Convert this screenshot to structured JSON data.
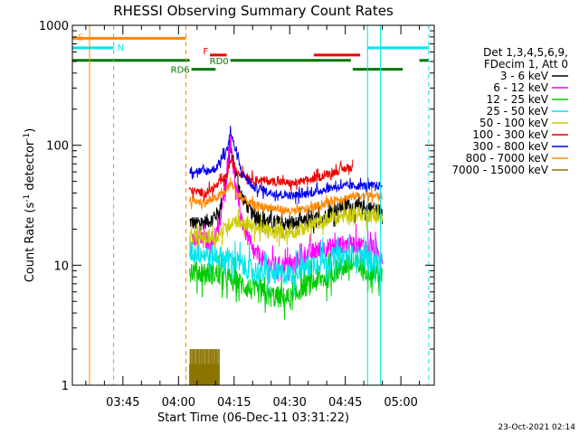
{
  "chart_data": {
    "type": "line",
    "title": "RHESSI Observing Summary Count Rates",
    "xlabel": "Start Time (06-Dec-11 03:31:22)",
    "ylabel": "Count Rate (s",
    "ylabel_sup": "-1",
    "ylabel_rest": " detector",
    "ylabel_end": ")",
    "yscale": "log",
    "ylim": [
      1,
      1000
    ],
    "xlim": [
      "03:31:22",
      "05:09:00"
    ],
    "x_ticks": [
      "03:45",
      "04:00",
      "04:15",
      "04:30",
      "04:45",
      "05:00"
    ],
    "y_ticks": [
      "1",
      "10",
      "100",
      "1000"
    ],
    "timestamp": "23-Oct-2021 02:14",
    "legend": {
      "position": "right",
      "header": [
        "Det 1,3,4,5,6,9,",
        "FDecim 1, Att 0"
      ],
      "entries": [
        {
          "label": "3 - 6 keV",
          "color": "#000000"
        },
        {
          "label": "6 - 12 keV",
          "color": "#ff00ff"
        },
        {
          "label": "12 - 25 keV",
          "color": "#00cc00"
        },
        {
          "label": "25 - 50 keV",
          "color": "#00e5ee"
        },
        {
          "label": "50 - 100 keV",
          "color": "#cccc00"
        },
        {
          "label": "100 - 300 keV",
          "color": "#ee0000"
        },
        {
          "label": "300 - 800 keV",
          "color": "#0000ee"
        },
        {
          "label": "800 - 7000 keV",
          "color": "#ff8800"
        },
        {
          "label": "7000 - 15000 keV",
          "color": "#8b7500"
        }
      ]
    },
    "flags": [
      {
        "label": "S",
        "color": "#ff8800",
        "level": 780,
        "segments": [
          [
            "03:31:22",
            "04:02:00"
          ]
        ]
      },
      {
        "label": "N",
        "color": "#00e5ee",
        "level": 650,
        "segments": [
          [
            "03:31:22",
            "03:42:30"
          ],
          [
            "04:51:00",
            "05:07:30"
          ]
        ]
      },
      {
        "label": "F",
        "color": "#ee0000",
        "level": 565,
        "segments": [
          [
            "04:08:30",
            "04:13:00"
          ],
          [
            "04:36:30",
            "04:49:00"
          ]
        ]
      },
      {
        "label": "RD0",
        "color": "#007700",
        "level": 510,
        "segments": [
          [
            "03:31:22",
            "04:03:00"
          ],
          [
            "04:14:00",
            "04:46:30"
          ],
          [
            "05:05:00",
            "05:07:30"
          ]
        ]
      },
      {
        "label": "RD6",
        "color": "#007700",
        "level": 430,
        "segments": [
          [
            "04:03:30",
            "04:10:00"
          ],
          [
            "04:47:00",
            "05:00:30"
          ]
        ]
      }
    ],
    "vlines": [
      {
        "time": "03:36:00",
        "color": "#ff8800",
        "style": "solid"
      },
      {
        "time": "03:42:30",
        "color": "#00e5ee",
        "style": "dashed"
      },
      {
        "time": "04:02:00",
        "color": "#ff8800",
        "style": "dashed"
      },
      {
        "time": "04:51:00",
        "color": "#00e5ee",
        "style": "solid"
      },
      {
        "time": "04:54:30",
        "color": "#00e5ee",
        "style": "solid"
      },
      {
        "time": "05:07:30",
        "color": "#00e5ee",
        "style": "dashed"
      }
    ],
    "series": [
      {
        "name": "3 - 6 keV",
        "color": "#000000",
        "noise": 0.14,
        "points": [
          [
            "04:03:00",
            23
          ],
          [
            "04:05:00",
            22
          ],
          [
            "04:09:00",
            24
          ],
          [
            "04:11:00",
            28
          ],
          [
            "04:13:00",
            50
          ],
          [
            "04:14:00",
            95
          ],
          [
            "04:15:00",
            70
          ],
          [
            "04:17:00",
            38
          ],
          [
            "04:20:00",
            26
          ],
          [
            "04:25:00",
            23
          ],
          [
            "04:30:00",
            22
          ],
          [
            "04:35:00",
            23
          ],
          [
            "04:40:00",
            26
          ],
          [
            "04:45:00",
            32
          ],
          [
            "04:48:00",
            30
          ],
          [
            "04:52:00",
            30
          ],
          [
            "04:55:00",
            28
          ]
        ]
      },
      {
        "name": "6 - 12 keV",
        "color": "#ff00ff",
        "noise": 0.18,
        "points": [
          [
            "04:03:00",
            16
          ],
          [
            "04:09:00",
            16
          ],
          [
            "04:11:00",
            20
          ],
          [
            "04:13:00",
            60
          ],
          [
            "04:14:00",
            120
          ],
          [
            "04:15:00",
            55
          ],
          [
            "04:17:00",
            24
          ],
          [
            "04:20:00",
            13
          ],
          [
            "04:25:00",
            10
          ],
          [
            "04:31:00",
            10
          ],
          [
            "04:33:00",
            12
          ],
          [
            "04:40:00",
            14
          ],
          [
            "04:45:00",
            15
          ],
          [
            "04:48:00",
            15
          ],
          [
            "04:52:00",
            14
          ],
          [
            "04:55:00",
            12
          ]
        ]
      },
      {
        "name": "12 - 25 keV",
        "color": "#00cc00",
        "noise": 0.22,
        "points": [
          [
            "04:03:00",
            9
          ],
          [
            "04:10:00",
            8.5
          ],
          [
            "04:15:00",
            7.5
          ],
          [
            "04:20:00",
            6.2
          ],
          [
            "04:25:00",
            5.5
          ],
          [
            "04:31:00",
            5.2
          ],
          [
            "04:33:00",
            6.5
          ],
          [
            "04:40:00",
            8
          ],
          [
            "04:45:00",
            10
          ],
          [
            "04:48:00",
            10
          ],
          [
            "04:52:00",
            9
          ],
          [
            "04:55:00",
            8
          ]
        ]
      },
      {
        "name": "25 - 50 keV",
        "color": "#00e5ee",
        "noise": 0.22,
        "points": [
          [
            "04:03:00",
            13
          ],
          [
            "04:10:00",
            12
          ],
          [
            "04:15:00",
            11
          ],
          [
            "04:20:00",
            9
          ],
          [
            "04:25:00",
            8.5
          ],
          [
            "04:31:00",
            8.5
          ],
          [
            "04:33:00",
            9.5
          ],
          [
            "04:40:00",
            11
          ],
          [
            "04:45:00",
            12
          ],
          [
            "04:48:00",
            12
          ],
          [
            "04:52:00",
            11
          ],
          [
            "04:55:00",
            10
          ]
        ]
      },
      {
        "name": "50 - 100 keV",
        "color": "#cccc00",
        "noise": 0.14,
        "points": [
          [
            "04:03:00",
            17
          ],
          [
            "04:10:00",
            17
          ],
          [
            "04:15:00",
            24
          ],
          [
            "04:20:00",
            21
          ],
          [
            "04:25:00",
            19
          ],
          [
            "04:31:00",
            19
          ],
          [
            "04:35:00",
            21
          ],
          [
            "04:40:00",
            24
          ],
          [
            "04:45:00",
            26
          ],
          [
            "04:48:00",
            27
          ],
          [
            "04:52:00",
            26
          ],
          [
            "04:55:00",
            25
          ]
        ]
      },
      {
        "name": "100 - 300 keV",
        "color": "#ee0000",
        "noise": 0.08,
        "points": [
          [
            "04:03:00",
            42
          ],
          [
            "04:07:00",
            40
          ],
          [
            "04:10:00",
            45
          ],
          [
            "04:13:00",
            55
          ],
          [
            "04:14:00",
            75
          ],
          [
            "04:16:00",
            60
          ],
          [
            "04:20:00",
            52
          ],
          [
            "04:25:00",
            50
          ],
          [
            "04:31:00",
            48
          ],
          [
            "04:36:00",
            52
          ],
          [
            "04:42:00",
            60
          ],
          [
            "04:46:00",
            65
          ],
          [
            "04:47:00",
            65
          ]
        ]
      },
      {
        "name": "300 - 800 keV",
        "color": "#0000ee",
        "noise": 0.08,
        "points": [
          [
            "04:03:00",
            62
          ],
          [
            "04:07:00",
            60
          ],
          [
            "04:10:00",
            64
          ],
          [
            "04:13:00",
            90
          ],
          [
            "04:14:00",
            130
          ],
          [
            "04:15:00",
            100
          ],
          [
            "04:17:00",
            60
          ],
          [
            "04:20:00",
            45
          ],
          [
            "04:25:00",
            40
          ],
          [
            "04:31:00",
            38
          ],
          [
            "04:36:00",
            40
          ],
          [
            "04:42:00",
            45
          ],
          [
            "04:48:00",
            46
          ],
          [
            "04:52:00",
            46
          ],
          [
            "04:55:00",
            46
          ]
        ]
      },
      {
        "name": "800 - 7000 keV",
        "color": "#ff8800",
        "noise": 0.08,
        "points": [
          [
            "04:03:00",
            35
          ],
          [
            "04:07:00",
            33
          ],
          [
            "04:10:00",
            36
          ],
          [
            "04:13:00",
            42
          ],
          [
            "04:14:00",
            50
          ],
          [
            "04:16:00",
            38
          ],
          [
            "04:20:00",
            32
          ],
          [
            "04:25:00",
            30
          ],
          [
            "04:31:00",
            28
          ],
          [
            "04:36:00",
            30
          ],
          [
            "04:42:00",
            35
          ],
          [
            "04:48:00",
            38
          ],
          [
            "04:52:00",
            38
          ],
          [
            "04:55:00",
            38
          ]
        ]
      },
      {
        "name": "7000 - 15000 keV",
        "color": "#8b7500",
        "noise": 0,
        "bars": {
          "start": "04:03:00",
          "end": "04:11:00",
          "levels": [
            1.5,
            2,
            2,
            1.5,
            2,
            1.5,
            2,
            2,
            1.5,
            2
          ]
        }
      }
    ]
  }
}
